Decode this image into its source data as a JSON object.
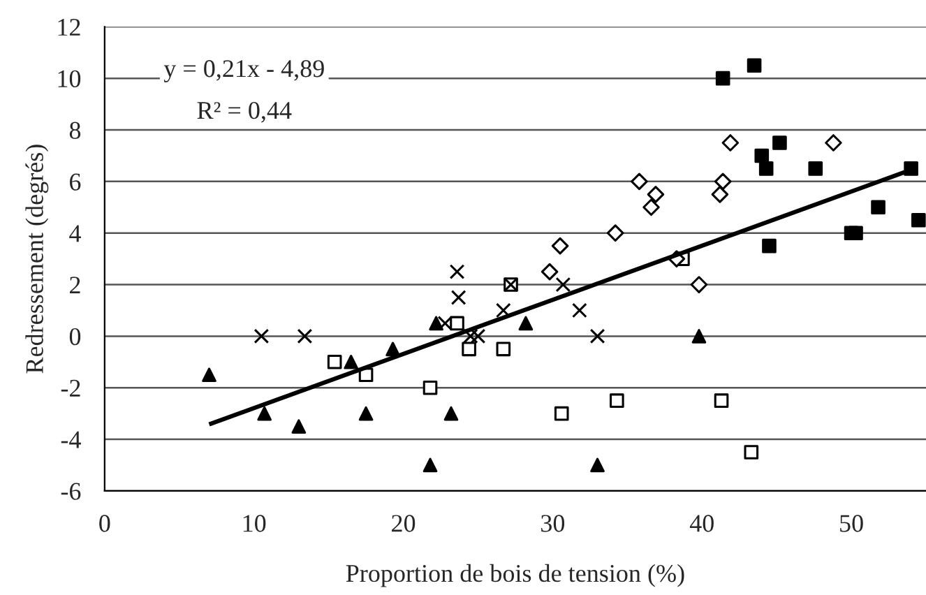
{
  "chart_data": {
    "type": "scatter",
    "xlabel": "Proportion de bois de tension (%)",
    "ylabel": "Redressement (degrés)",
    "xlim": [
      0,
      55
    ],
    "xticks": [
      0,
      10,
      20,
      30,
      40,
      50
    ],
    "ylim": [
      -6,
      12
    ],
    "yticks": [
      -6,
      -4,
      -2,
      0,
      2,
      4,
      6,
      8,
      10,
      12
    ],
    "grid": "y",
    "series": [
      {
        "color": "#000000",
        "marker": "triangle",
        "x": [
          7,
          10.7,
          13,
          16.5,
          17.5,
          19.3,
          21.8,
          22.2,
          23.2,
          28.2,
          33,
          39.8
        ],
        "values": [
          -1.5,
          -3,
          -3.5,
          -1,
          -3,
          -0.5,
          -5,
          0.5,
          -3,
          0.5,
          -5,
          0
        ]
      },
      {
        "color": "#ffffff",
        "marker": "square",
        "x": [
          15.4,
          17.5,
          21.8,
          23.6,
          24.4,
          26.7,
          27.2,
          30.6,
          34.3,
          38.7,
          41.3,
          43.3
        ],
        "values": [
          -1,
          -1.5,
          -2,
          0.5,
          -0.5,
          -0.5,
          2,
          -3,
          -2.5,
          3,
          -2.5,
          -4.5
        ]
      },
      {
        "color": "#000000",
        "marker": "cross",
        "x": [
          10.5,
          13.4,
          22.8,
          23.6,
          23.7,
          24.5,
          25,
          26.7,
          27.2,
          30.7,
          31.8,
          33
        ],
        "values": [
          0,
          0,
          0.5,
          2.5,
          1.5,
          0,
          0,
          1,
          2,
          2,
          1,
          0
        ]
      },
      {
        "color": "#ffffff",
        "marker": "diamond",
        "x": [
          29.8,
          30.5,
          34.2,
          35.8,
          36.6,
          36.9,
          38.3,
          39.8,
          41.2,
          41.4,
          41.9,
          48.8
        ],
        "values": [
          2.5,
          3.5,
          4,
          6,
          5,
          5.5,
          3,
          2,
          5.5,
          6,
          7.5,
          7.5
        ]
      },
      {
        "color": "#000000",
        "marker": "square",
        "x": [
          41.4,
          43.5,
          44,
          44.3,
          45.2,
          47.6,
          50,
          50.3,
          44.5,
          51.8,
          54,
          54.5
        ],
        "values": [
          10,
          10.5,
          7,
          6.5,
          7.5,
          6.5,
          4,
          4,
          3.5,
          5,
          6.5,
          4.5
        ]
      },
      {
        "type": "line",
        "color": "#000000",
        "x": [
          7,
          54
        ],
        "values": [
          -3.42,
          6.45
        ]
      }
    ],
    "annotations": [
      "y = 0,21x - 4,89",
      "R² = 0,44"
    ]
  }
}
